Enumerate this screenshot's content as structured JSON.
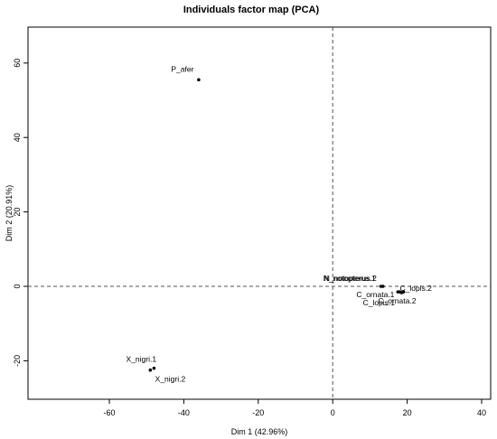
{
  "chart_data": {
    "type": "scatter",
    "title": "Individuals factor map (PCA)",
    "xlabel": "Dim 1 (42.96%)",
    "ylabel": "Dim 2 (20.91%)",
    "xlim": [
      -60,
      40
    ],
    "ylim": [
      -20,
      60
    ],
    "xticks": [
      -60,
      -40,
      -20,
      0,
      20,
      40
    ],
    "yticks": [
      -20,
      0,
      20,
      40,
      60
    ],
    "reference_lines": {
      "x": 0,
      "y": 0,
      "style": "dashed"
    },
    "grid": false,
    "points": [
      {
        "label": "P_afer",
        "x": -36,
        "y": 55.5
      },
      {
        "label": "X_nigri.1",
        "x": -49,
        "y": -22.5
      },
      {
        "label": "X_nigri.2",
        "x": -48,
        "y": -22
      },
      {
        "label": "N_notopterus.1",
        "x": 13,
        "y": 0
      },
      {
        "label": "N_notopterus.2",
        "x": 13.5,
        "y": 0
      },
      {
        "label": "C_lopis.1",
        "x": 17.5,
        "y": -1.5
      },
      {
        "label": "C_lopis.2",
        "x": 19,
        "y": -1.5
      },
      {
        "label": "C_ornata.1",
        "x": 18,
        "y": -1.5
      },
      {
        "label": "C_ornata.2",
        "x": 18.5,
        "y": -1.7
      }
    ]
  }
}
